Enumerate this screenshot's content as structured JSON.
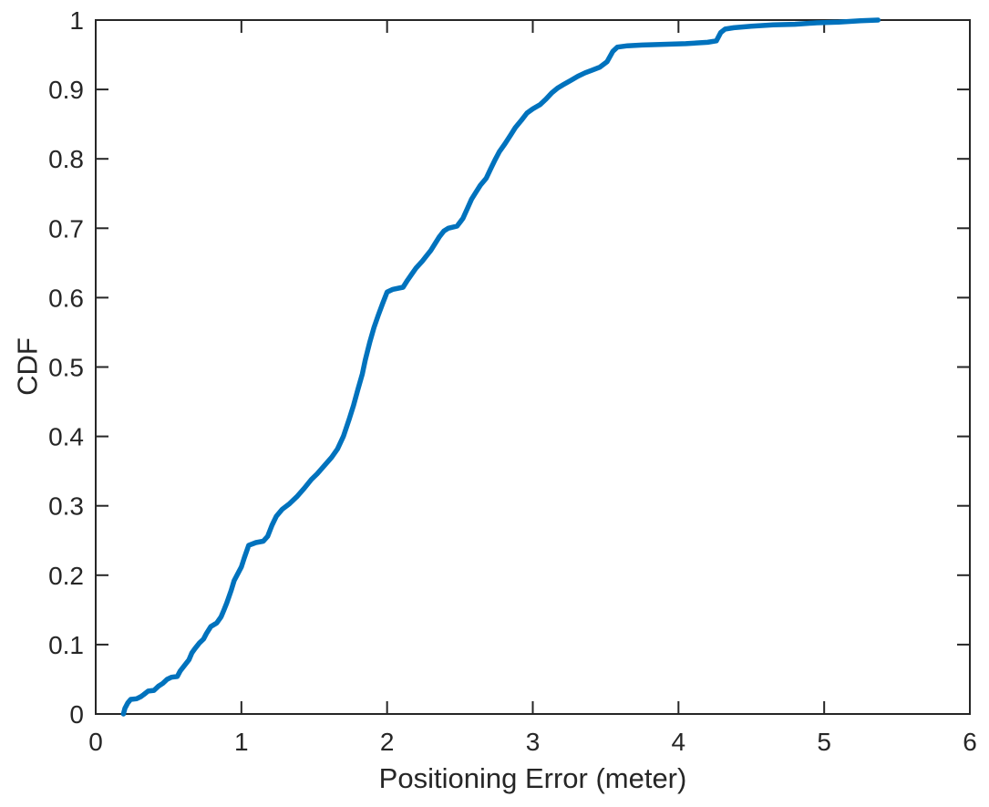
{
  "figure": {
    "background": "#ffffff"
  },
  "chart_data": {
    "type": "line",
    "title": "",
    "xlabel": "Positioning Error (meter)",
    "ylabel": "CDF",
    "xlim": [
      0,
      6
    ],
    "ylim": [
      0,
      1
    ],
    "xticks": [
      0,
      1,
      2,
      3,
      4,
      5,
      6
    ],
    "xtick_labels": [
      "0",
      "1",
      "2",
      "3",
      "4",
      "5",
      "6"
    ],
    "yticks": [
      0,
      0.1,
      0.2,
      0.3,
      0.4,
      0.5,
      0.6,
      0.7,
      0.8,
      0.9,
      1
    ],
    "ytick_labels": [
      "0",
      "0.1",
      "0.2",
      "0.3",
      "0.4",
      "0.5",
      "0.6",
      "0.7",
      "0.8",
      "0.9",
      "1"
    ],
    "grid": false,
    "box": true,
    "tick_direction": "in",
    "legend_position": "none",
    "line_color": "#0072BD",
    "axis_color": "#262626",
    "series": [
      {
        "name": "CDF of positioning error",
        "points": [
          [
            0.19,
            0.0
          ],
          [
            0.2,
            0.008
          ],
          [
            0.22,
            0.016
          ],
          [
            0.24,
            0.021
          ],
          [
            0.28,
            0.022
          ],
          [
            0.31,
            0.025
          ],
          [
            0.33,
            0.028
          ],
          [
            0.36,
            0.033
          ],
          [
            0.4,
            0.034
          ],
          [
            0.43,
            0.04
          ],
          [
            0.46,
            0.044
          ],
          [
            0.49,
            0.05
          ],
          [
            0.52,
            0.053
          ],
          [
            0.56,
            0.054
          ],
          [
            0.58,
            0.062
          ],
          [
            0.61,
            0.07
          ],
          [
            0.64,
            0.078
          ],
          [
            0.66,
            0.088
          ],
          [
            0.68,
            0.094
          ],
          [
            0.71,
            0.102
          ],
          [
            0.74,
            0.108
          ],
          [
            0.76,
            0.116
          ],
          [
            0.79,
            0.126
          ],
          [
            0.83,
            0.131
          ],
          [
            0.86,
            0.14
          ],
          [
            0.88,
            0.15
          ],
          [
            0.9,
            0.16
          ],
          [
            0.93,
            0.178
          ],
          [
            0.95,
            0.192
          ],
          [
            0.97,
            0.2
          ],
          [
            1.0,
            0.212
          ],
          [
            1.02,
            0.225
          ],
          [
            1.05,
            0.243
          ],
          [
            1.1,
            0.247
          ],
          [
            1.15,
            0.249
          ],
          [
            1.18,
            0.256
          ],
          [
            1.21,
            0.272
          ],
          [
            1.24,
            0.285
          ],
          [
            1.28,
            0.295
          ],
          [
            1.33,
            0.303
          ],
          [
            1.38,
            0.313
          ],
          [
            1.43,
            0.325
          ],
          [
            1.48,
            0.338
          ],
          [
            1.52,
            0.346
          ],
          [
            1.57,
            0.358
          ],
          [
            1.62,
            0.37
          ],
          [
            1.66,
            0.382
          ],
          [
            1.7,
            0.4
          ],
          [
            1.74,
            0.425
          ],
          [
            1.77,
            0.445
          ],
          [
            1.8,
            0.468
          ],
          [
            1.83,
            0.49
          ],
          [
            1.85,
            0.51
          ],
          [
            1.88,
            0.535
          ],
          [
            1.91,
            0.557
          ],
          [
            1.94,
            0.575
          ],
          [
            1.97,
            0.592
          ],
          [
            2.0,
            0.608
          ],
          [
            2.04,
            0.612
          ],
          [
            2.11,
            0.615
          ],
          [
            2.14,
            0.625
          ],
          [
            2.17,
            0.634
          ],
          [
            2.2,
            0.643
          ],
          [
            2.24,
            0.652
          ],
          [
            2.27,
            0.66
          ],
          [
            2.3,
            0.668
          ],
          [
            2.33,
            0.678
          ],
          [
            2.36,
            0.688
          ],
          [
            2.39,
            0.696
          ],
          [
            2.42,
            0.7
          ],
          [
            2.48,
            0.703
          ],
          [
            2.52,
            0.714
          ],
          [
            2.55,
            0.728
          ],
          [
            2.58,
            0.742
          ],
          [
            2.61,
            0.752
          ],
          [
            2.64,
            0.762
          ],
          [
            2.68,
            0.772
          ],
          [
            2.71,
            0.785
          ],
          [
            2.74,
            0.798
          ],
          [
            2.77,
            0.81
          ],
          [
            2.81,
            0.822
          ],
          [
            2.85,
            0.835
          ],
          [
            2.88,
            0.845
          ],
          [
            2.92,
            0.855
          ],
          [
            2.96,
            0.866
          ],
          [
            3.0,
            0.872
          ],
          [
            3.05,
            0.878
          ],
          [
            3.09,
            0.886
          ],
          [
            3.13,
            0.895
          ],
          [
            3.17,
            0.902
          ],
          [
            3.21,
            0.907
          ],
          [
            3.26,
            0.913
          ],
          [
            3.31,
            0.919
          ],
          [
            3.36,
            0.924
          ],
          [
            3.41,
            0.928
          ],
          [
            3.46,
            0.932
          ],
          [
            3.51,
            0.94
          ],
          [
            3.55,
            0.955
          ],
          [
            3.58,
            0.961
          ],
          [
            3.65,
            0.963
          ],
          [
            3.75,
            0.964
          ],
          [
            3.9,
            0.965
          ],
          [
            4.05,
            0.966
          ],
          [
            4.2,
            0.968
          ],
          [
            4.26,
            0.97
          ],
          [
            4.29,
            0.982
          ],
          [
            4.32,
            0.987
          ],
          [
            4.38,
            0.989
          ],
          [
            4.5,
            0.991
          ],
          [
            4.65,
            0.993
          ],
          [
            4.8,
            0.994
          ],
          [
            4.95,
            0.996
          ],
          [
            5.1,
            0.997
          ],
          [
            5.25,
            0.999
          ],
          [
            5.37,
            1.0
          ]
        ]
      }
    ]
  }
}
